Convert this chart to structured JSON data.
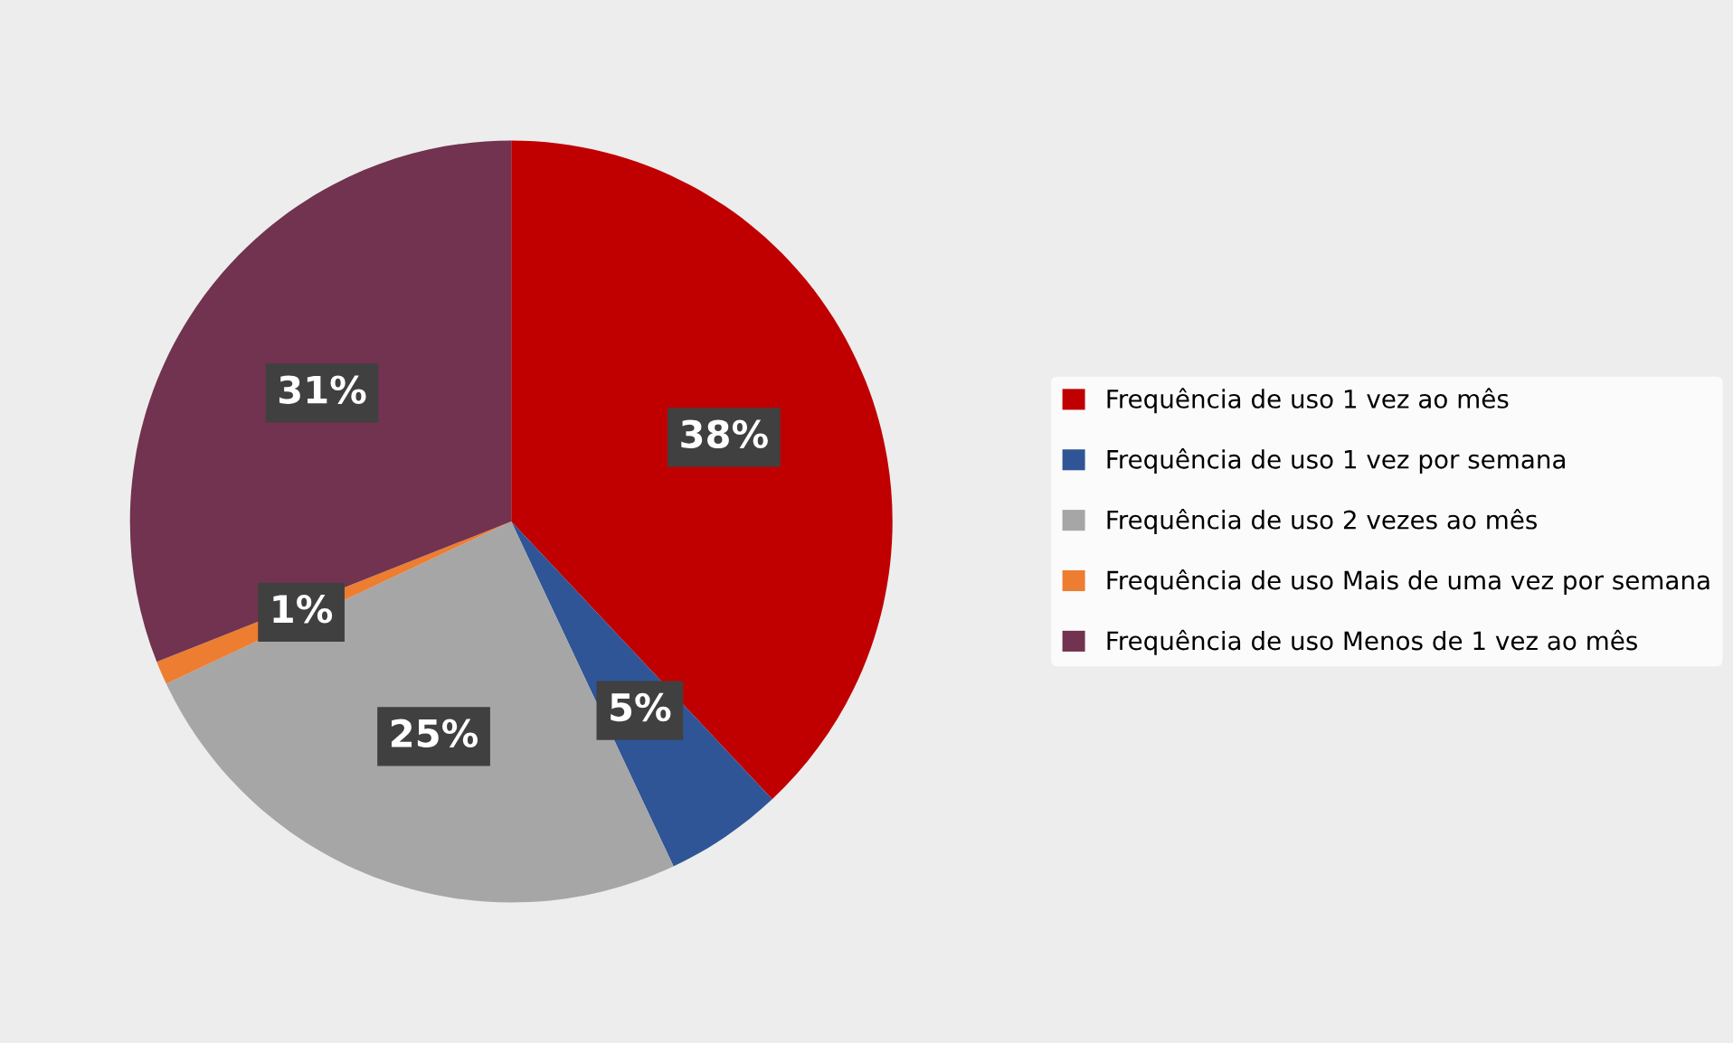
{
  "chart_data": {
    "type": "pie",
    "categories": [
      "Frequência de uso 1 vez ao mês",
      "Frequência de uso 1 vez por semana",
      "Frequência de uso 2 vezes ao mês",
      "Frequência de uso Mais de uma vez por semana",
      "Frequência de uso Menos de 1 vez ao mês"
    ],
    "values": [
      38,
      5,
      25,
      1,
      31
    ],
    "colors": [
      "#c00000",
      "#2f5597",
      "#a6a6a6",
      "#ed7d31",
      "#71334f"
    ],
    "value_labels": [
      "38%",
      "5%",
      "25%",
      "1%",
      "31%"
    ],
    "legend": "right"
  }
}
